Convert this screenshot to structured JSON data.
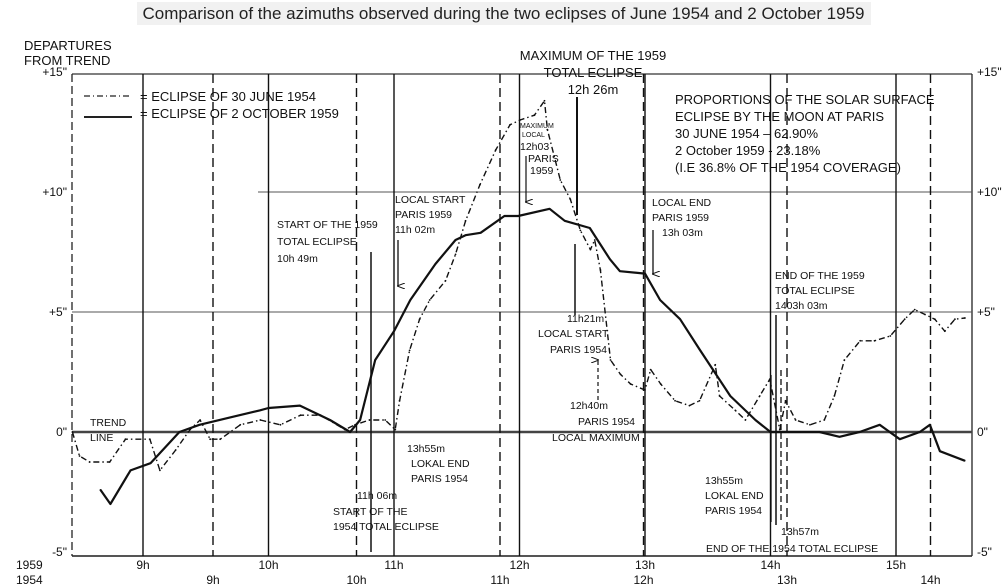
{
  "caption": "Comparison of the azimuths observed during the two eclipses of June 1954 and 2 October 1959",
  "chart_data": {
    "type": "line",
    "title": "Comparison of the azimuths observed during the two eclipses of June 1954 and 2 October 1959",
    "ylabel": [
      "DEPARTURES",
      "FROM TREND"
    ],
    "ylim": [
      -5,
      15
    ],
    "yticks": [
      {
        "value": 15,
        "label": "+15\""
      },
      {
        "value": 10,
        "label": "+10\""
      },
      {
        "value": 5,
        "label": "+5\""
      },
      {
        "value": 0,
        "label": "0\""
      },
      {
        "value": -5,
        "label": "-5\""
      }
    ],
    "x_axes": [
      {
        "name": "1959",
        "label": "1959",
        "unit": "hours",
        "ticks": [
          {
            "value": 9,
            "label": "9h"
          },
          {
            "value": 10,
            "label": "10h"
          },
          {
            "value": 11,
            "label": "11h"
          },
          {
            "value": 12,
            "label": "12h"
          },
          {
            "value": 13,
            "label": "13h"
          },
          {
            "value": 14,
            "label": "14h"
          },
          {
            "value": 15,
            "label": "15h"
          }
        ]
      },
      {
        "name": "1954",
        "label": "1954",
        "unit": "hours",
        "ticks": [
          {
            "value": 9,
            "label": "9h"
          },
          {
            "value": 10,
            "label": "10h"
          },
          {
            "value": 11,
            "label": "11h"
          },
          {
            "value": 12,
            "label": "12h"
          },
          {
            "value": 13,
            "label": "13h"
          },
          {
            "value": 14,
            "label": "14h"
          }
        ]
      }
    ],
    "legend": [
      {
        "label": "= ECLIPSE OF 30 JUNE 1954",
        "style": "dash-dot"
      },
      {
        "label": "= ECLIPSE OF 2 OCTOBER 1959",
        "style": "solid"
      }
    ],
    "legend_position": "top-left",
    "series": [
      {
        "name": "Eclipse of 30 June 1954",
        "axis": "1954",
        "style": "dashed",
        "points": [
          [
            8.02,
            0
          ],
          [
            8.07,
            -1.0
          ],
          [
            8.14,
            -1.25
          ],
          [
            8.28,
            -1.25
          ],
          [
            8.39,
            -0.3
          ],
          [
            8.56,
            -0.3
          ],
          [
            8.63,
            -1.6
          ],
          [
            8.74,
            -0.75
          ],
          [
            8.84,
            0.1
          ],
          [
            8.91,
            0.5
          ],
          [
            8.98,
            -0.3
          ],
          [
            9.05,
            -0.3
          ],
          [
            9.19,
            0.3
          ],
          [
            9.33,
            0.5
          ],
          [
            9.47,
            0.3
          ],
          [
            9.61,
            0.7
          ],
          [
            9.75,
            0.7
          ],
          [
            9.92,
            0.1
          ],
          [
            9.99,
            0.3
          ],
          [
            10.09,
            0.5
          ],
          [
            10.2,
            0.5
          ],
          [
            10.27,
            0.1
          ],
          [
            10.3,
            1.3
          ],
          [
            10.37,
            3.4
          ],
          [
            10.44,
            4.7
          ],
          [
            10.51,
            5.5
          ],
          [
            10.62,
            6.3
          ],
          [
            10.69,
            7.4
          ],
          [
            10.76,
            8.8
          ],
          [
            10.86,
            10.3
          ],
          [
            10.97,
            11.75
          ],
          [
            11.07,
            12.8
          ],
          [
            11.14,
            13.0
          ],
          [
            11.24,
            13.2
          ],
          [
            11.31,
            13.8
          ],
          [
            11.33,
            12.6
          ],
          [
            11.42,
            10.5
          ],
          [
            11.49,
            9.7
          ],
          [
            11.56,
            8.4
          ],
          [
            11.63,
            7.6
          ],
          [
            11.66,
            8.0
          ],
          [
            11.7,
            6.75
          ],
          [
            11.77,
            3.0
          ],
          [
            11.84,
            2.4
          ],
          [
            11.91,
            2.0
          ],
          [
            12.01,
            1.75
          ],
          [
            12.05,
            2.6
          ],
          [
            12.12,
            2.0
          ],
          [
            12.22,
            1.3
          ],
          [
            12.32,
            1.1
          ],
          [
            12.39,
            1.3
          ],
          [
            12.5,
            2.8
          ],
          [
            12.53,
            1.5
          ],
          [
            12.64,
            0.9
          ],
          [
            12.71,
            0.5
          ],
          [
            12.81,
            1.5
          ],
          [
            12.88,
            2.2
          ],
          [
            12.95,
            0.1
          ],
          [
            12.99,
            1.3
          ],
          [
            13.06,
            0.5
          ],
          [
            13.16,
            0.3
          ],
          [
            13.26,
            0.5
          ],
          [
            13.33,
            1.5
          ],
          [
            13.4,
            3.0
          ],
          [
            13.51,
            3.8
          ],
          [
            13.61,
            3.8
          ],
          [
            13.72,
            4.0
          ],
          [
            13.82,
            4.7
          ],
          [
            13.89,
            5.1
          ],
          [
            13.96,
            4.9
          ],
          [
            14.03,
            4.7
          ],
          [
            14.1,
            4.2
          ],
          [
            14.17,
            4.7
          ],
          [
            14.24,
            4.75
          ]
        ]
      },
      {
        "name": "Eclipse of 2 October 1959",
        "axis": "1959",
        "style": "solid",
        "points": [
          [
            8.66,
            -2.4
          ],
          [
            8.74,
            -3.0
          ],
          [
            8.9,
            -1.6
          ],
          [
            9.06,
            -1.3
          ],
          [
            9.29,
            0
          ],
          [
            9.45,
            0.3
          ],
          [
            9.69,
            0.6
          ],
          [
            9.93,
            0.9
          ],
          [
            10.0,
            1.0
          ],
          [
            10.25,
            1.1
          ],
          [
            10.49,
            0.5
          ],
          [
            10.65,
            0
          ],
          [
            10.73,
            0.5
          ],
          [
            10.85,
            3.0
          ],
          [
            11.0,
            4.2
          ],
          [
            11.13,
            5.5
          ],
          [
            11.33,
            7.0
          ],
          [
            11.49,
            8.0
          ],
          [
            11.57,
            8.2
          ],
          [
            11.69,
            8.3
          ],
          [
            11.88,
            9.0
          ],
          [
            11.99,
            9.0
          ],
          [
            12.24,
            9.3
          ],
          [
            12.36,
            8.8
          ],
          [
            12.56,
            8.5
          ],
          [
            12.72,
            7.2
          ],
          [
            12.8,
            6.7
          ],
          [
            13.0,
            6.6
          ],
          [
            13.12,
            5.5
          ],
          [
            13.28,
            4.7
          ],
          [
            13.44,
            3.4
          ],
          [
            13.68,
            1.5
          ],
          [
            13.88,
            0.5
          ],
          [
            14.0,
            0
          ],
          [
            14.24,
            0
          ],
          [
            14.39,
            0
          ],
          [
            14.55,
            -0.2
          ],
          [
            14.71,
            0
          ],
          [
            14.87,
            0.3
          ],
          [
            15.03,
            -0.3
          ],
          [
            15.19,
            0
          ],
          [
            15.27,
            0.3
          ],
          [
            15.35,
            -0.8
          ],
          [
            15.55,
            -1.2
          ]
        ]
      }
    ],
    "annotations": {
      "max1959": [
        "MAXIMUM OF THE 1959",
        "TOTAL ECLIPSE",
        "12h 26m"
      ],
      "proportions": [
        "PROPORTIONS OF THE SOLAR SURFACE",
        "ECLIPSE BY THE MOON AT PARIS",
        "30 JUNE 1954 – 62.90%",
        "2 October 1959 - 23.18%",
        "(I.E 36.8% OF THE 1954 COVERAGE)"
      ],
      "start1959": [
        "START OF THE 1959",
        "TOTAL ECLIPSE",
        "10h 49m"
      ],
      "localstart1959": [
        "LOCAL START",
        "PARIS 1959",
        "11h 02m"
      ],
      "localmax1959": [
        "MAXIMUM",
        "LOCAL",
        "12h03",
        "PARIS",
        "1959"
      ],
      "localend1959": [
        "LOCAL END",
        "PARIS 1959",
        "13h 03m"
      ],
      "end1959": [
        "END OF THE 1959",
        "TOTAL ECLIPSE",
        "1403h 03m"
      ],
      "localstart1954": [
        "11h21m",
        "LOCAL START",
        "PARIS 1954"
      ],
      "localmax1954": [
        "12h40m",
        "PARIS 1954",
        "LOCAL MAXIMUM"
      ],
      "trend": [
        "TREND",
        "LINE"
      ],
      "lokalend1954a": [
        "13h55m",
        "LOKAL END",
        "PARIS 1954"
      ],
      "start1954": [
        "11h 06m",
        "START OF THE",
        "1954 TOTAL ECLIPSE"
      ],
      "lokalend1954b": [
        "13h55m",
        "LOKAL END",
        "PARIS 1954"
      ],
      "end1954": [
        "13h57m",
        "END OF THE 1954 TOTAL ECLIPSE"
      ]
    }
  }
}
